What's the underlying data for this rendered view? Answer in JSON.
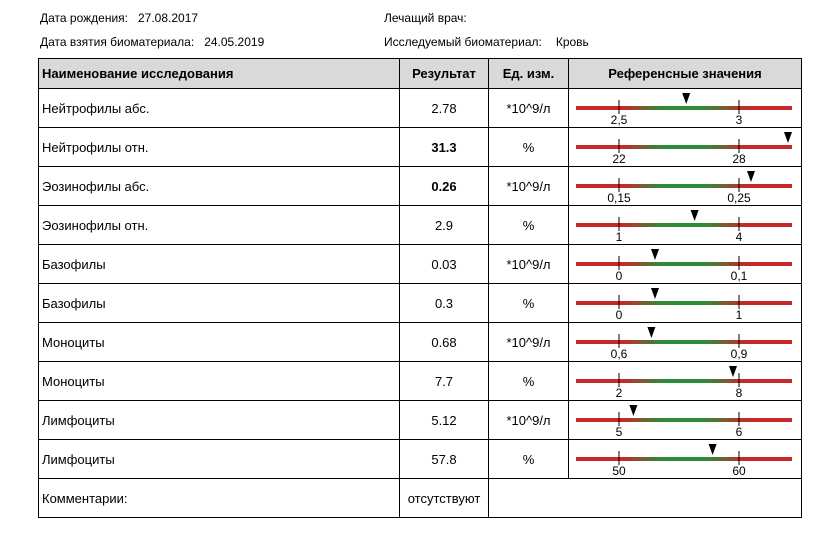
{
  "header": {
    "birth_date_label": "Дата рождения:",
    "birth_date": "27.08.2017",
    "sample_date_label": "Дата взятия биоматериала:",
    "sample_date": "24.05.2019",
    "doctor_label": "Лечащий врач:",
    "doctor": "",
    "material_label": "Исследуемый биоматериал:",
    "material": "Кровь"
  },
  "table": {
    "columns": [
      "Наименование исследования",
      "Результат",
      "Ед. изм.",
      "Референсные значения"
    ],
    "rows": [
      {
        "name": "Нейтрофилы абс.",
        "result": "2.78",
        "unit": "*10^9/л",
        "bold": false,
        "low": "2,5",
        "high": "3",
        "marker_pos": 0.56
      },
      {
        "name": "Нейтрофилы отн.",
        "result": "31.3",
        "unit": "%",
        "bold": true,
        "low": "22",
        "high": "28",
        "marker_pos": 1.55
      },
      {
        "name": "Эозинофилы абс.",
        "result": "0.26",
        "unit": "*10^9/л",
        "bold": true,
        "low": "0,15",
        "high": "0,25",
        "marker_pos": 1.1
      },
      {
        "name": "Эозинофилы отн.",
        "result": "2.9",
        "unit": "%",
        "bold": false,
        "low": "1",
        "high": "4",
        "marker_pos": 0.63
      },
      {
        "name": "Базофилы",
        "result": "0.03",
        "unit": "*10^9/л",
        "bold": false,
        "low": "0",
        "high": "0,1",
        "marker_pos": 0.3
      },
      {
        "name": "Базофилы",
        "result": "0.3",
        "unit": "%",
        "bold": false,
        "low": "0",
        "high": "1",
        "marker_pos": 0.3
      },
      {
        "name": "Моноциты",
        "result": "0.68",
        "unit": "*10^9/л",
        "bold": false,
        "low": "0,6",
        "high": "0,9",
        "marker_pos": 0.27
      },
      {
        "name": "Моноциты",
        "result": "7.7",
        "unit": "%",
        "bold": false,
        "low": "2",
        "high": "8",
        "marker_pos": 0.95
      },
      {
        "name": "Лимфоциты",
        "result": "5.12",
        "unit": "*10^9/л",
        "bold": false,
        "low": "5",
        "high": "6",
        "marker_pos": 0.12
      },
      {
        "name": "Лимфоциты",
        "result": "57.8",
        "unit": "%",
        "bold": false,
        "low": "50",
        "high": "60",
        "marker_pos": 0.78
      }
    ],
    "comment_label": "Комментарии:",
    "comment_value": "отсутствуют"
  },
  "colors": {
    "bar_red": "#c62828",
    "bar_green": "#2e8b3d",
    "header_bg": "#d9d9d9",
    "marker": "#000000"
  }
}
